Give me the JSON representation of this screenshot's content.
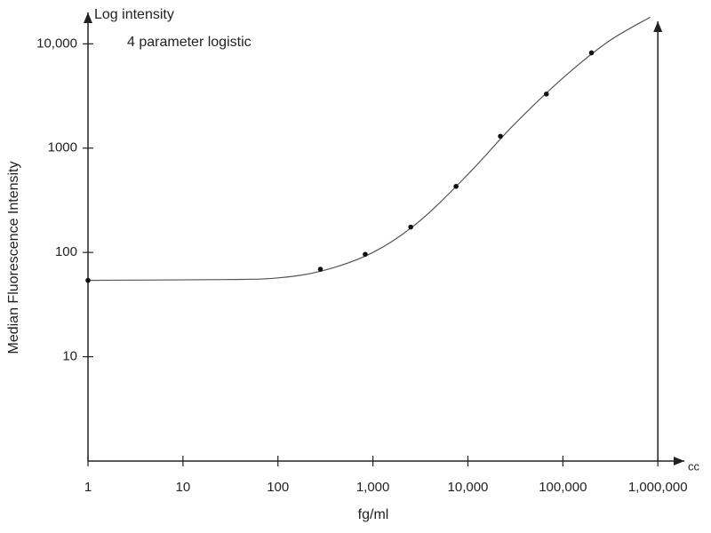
{
  "chart_data": {
    "type": "scatter",
    "title": "Log intensity",
    "subtitle": "4 parameter logistic",
    "x_label": "fg/ml",
    "y_label": "Median Fluorescence Intensity",
    "x_axis_end_label": "cc",
    "log_x": true,
    "log_y": true,
    "xlim": [
      1,
      1900000
    ],
    "ylim": [
      1,
      20000
    ],
    "xticks": [
      1,
      10,
      100,
      {
        "value": 1000,
        "label": "1,000"
      },
      {
        "value": 10000,
        "label": "10,000"
      },
      {
        "value": 100000,
        "label": "100,000"
      },
      {
        "value": 1000000,
        "label": "1,000,000"
      }
    ],
    "yticks": [
      10,
      100,
      1000,
      {
        "value": 10000,
        "label": "10,000"
      }
    ],
    "x": [
      1,
      280,
      830,
      2500,
      7500,
      22000,
      67000,
      200000
    ],
    "values": [
      54,
      69,
      96,
      175,
      430,
      1300,
      3300,
      8200
    ],
    "color": "#111111",
    "fit_curve": {
      "color": "#555555",
      "x": [
        1,
        30,
        100,
        300,
        1000,
        3000,
        10000,
        30000,
        100000,
        300000,
        830000
      ],
      "values": [
        54,
        55,
        57,
        67,
        100,
        195,
        560,
        1650,
        4700,
        10500,
        18000
      ]
    }
  }
}
